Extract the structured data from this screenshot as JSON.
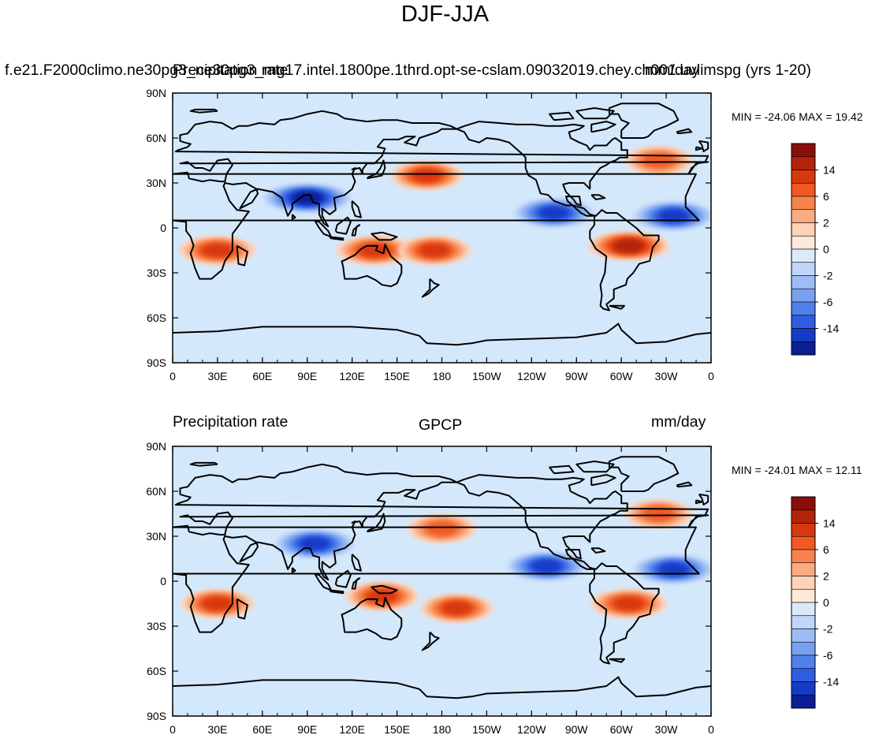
{
  "figure": {
    "title": "DJF-JJA",
    "colors": {
      "background": "#ffffff",
      "ocean_neutral": "#d4e8fb",
      "coast": "#000000"
    }
  },
  "colorbar": {
    "labels": [
      "14",
      "6",
      "2",
      "0",
      "-2",
      "-6",
      "-14"
    ],
    "colors": [
      "#8a0e0b",
      "#b2240c",
      "#d8380e",
      "#f05a22",
      "#f6834b",
      "#fbaa82",
      "#fdd2b5",
      "#fde9d9",
      "#dbeafb",
      "#bfd6f9",
      "#9ebdf5",
      "#7aa1f0",
      "#5080ec",
      "#2e5de2",
      "#163bc4",
      "#0a1f96"
    ]
  },
  "chart_data": [
    {
      "type": "heatmap",
      "subtitle": "f.e21.F2000climo.ne30pg3_ne30pg3_mg17.intel.1800pe.1thrd.opt-se-cslam.09032019.chey.ch001.uvlimspg (yrs 1-20)",
      "overlay_text": [
        "Precipitation rate",
        "mm/day"
      ],
      "left_label": "",
      "center_label": "",
      "right_label": "",
      "stats": "MIN = -24.06 MAX =  19.42",
      "min": -24.06,
      "max": 19.42,
      "units": "mm/day",
      "xticks": [
        "0",
        "30E",
        "60E",
        "90E",
        "120E",
        "150E",
        "180",
        "150W",
        "120W",
        "90W",
        "60W",
        "30W",
        "0"
      ],
      "yticks": [
        "90N",
        "60N",
        "30N",
        "0",
        "30S",
        "60S",
        "90S"
      ],
      "xlim": [
        0,
        360
      ],
      "ylim": [
        -90,
        90
      ],
      "levels": [
        -14,
        -10,
        -6,
        -4,
        -2,
        -1,
        -0.5,
        0,
        0.5,
        1,
        2,
        4,
        6,
        10,
        14
      ],
      "features": [
        {
          "name": "Southern Africa wet",
          "lon": 30,
          "lat": -15,
          "value": 8
        },
        {
          "name": "Atlantic ITCZ dry",
          "lon": 335,
          "lat": 8,
          "value": -10
        },
        {
          "name": "Indian monsoon dry",
          "lon": 90,
          "lat": 20,
          "value": -14
        },
        {
          "name": "Maritime continent wet",
          "lon": 135,
          "lat": -15,
          "value": 8
        },
        {
          "name": "South Pacific convergence zone wet",
          "lon": 175,
          "lat": -15,
          "value": 6
        },
        {
          "name": "NW Pacific wet",
          "lon": 170,
          "lat": 35,
          "value": 6
        },
        {
          "name": "NE Pacific ITCZ dry",
          "lon": 255,
          "lat": 10,
          "value": -10
        },
        {
          "name": "Amazon wet",
          "lon": 305,
          "lat": -12,
          "value": 10
        },
        {
          "name": "North Atlantic wet",
          "lon": 325,
          "lat": 45,
          "value": 4
        }
      ]
    },
    {
      "type": "heatmap",
      "subtitle": "",
      "overlay_text": [],
      "left_label": "Precipitation rate",
      "center_label": "GPCP",
      "right_label": "mm/day",
      "stats": "MIN = -24.01 MAX =  12.11",
      "min": -24.01,
      "max": 12.11,
      "units": "mm/day",
      "xticks": [
        "0",
        "30E",
        "60E",
        "90E",
        "120E",
        "150E",
        "180",
        "150W",
        "120W",
        "90W",
        "60W",
        "30W",
        "0"
      ],
      "yticks": [
        "90N",
        "60N",
        "30N",
        "0",
        "30S",
        "60S",
        "90S"
      ],
      "xlim": [
        0,
        360
      ],
      "ylim": [
        -90,
        90
      ],
      "levels": [
        -14,
        -10,
        -6,
        -4,
        -2,
        -1,
        -0.5,
        0,
        0.5,
        1,
        2,
        4,
        6,
        10,
        14
      ],
      "features": [
        {
          "name": "Southern Africa wet",
          "lon": 30,
          "lat": -15,
          "value": 6
        },
        {
          "name": "Atlantic ITCZ dry",
          "lon": 335,
          "lat": 8,
          "value": -10
        },
        {
          "name": "Asian monsoon dry",
          "lon": 95,
          "lat": 25,
          "value": -10
        },
        {
          "name": "Maritime continent wet",
          "lon": 140,
          "lat": -10,
          "value": 6
        },
        {
          "name": "South Pacific wet",
          "lon": 190,
          "lat": -18,
          "value": 6
        },
        {
          "name": "NW Pacific wet",
          "lon": 180,
          "lat": 35,
          "value": 4
        },
        {
          "name": "NE Pacific ITCZ dry",
          "lon": 250,
          "lat": 10,
          "value": -10
        },
        {
          "name": "South America wet",
          "lon": 305,
          "lat": -15,
          "value": 8
        },
        {
          "name": "North Atlantic wet",
          "lon": 325,
          "lat": 45,
          "value": 4
        }
      ]
    }
  ]
}
